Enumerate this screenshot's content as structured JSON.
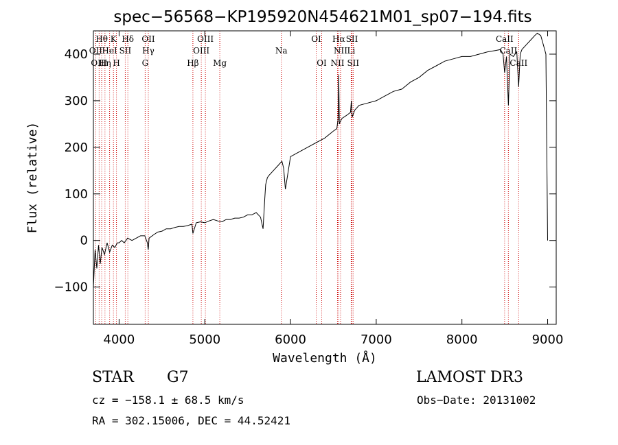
{
  "chart_data": {
    "type": "line",
    "title": "spec−56568−KP195920N454621M01_sp07−194.fits",
    "xlabel": "Wavelength (Å)",
    "ylabel": "Flux (relative)",
    "xlim": [
      3700,
      9100
    ],
    "ylim": [
      -180,
      450
    ],
    "xticks": [
      4000,
      5000,
      6000,
      7000,
      8000,
      9000
    ],
    "yticks": [
      -100,
      0,
      100,
      200,
      300,
      400
    ],
    "xtick_labels": [
      "4000",
      "5000",
      "6000",
      "7000",
      "8000",
      "9000"
    ],
    "ytick_labels": [
      "−100",
      "0",
      "100",
      "200",
      "300",
      "400"
    ],
    "series": [
      {
        "name": "flux",
        "x": [
          3700,
          3720,
          3740,
          3760,
          3780,
          3800,
          3830,
          3860,
          3890,
          3920,
          3950,
          3980,
          4000,
          4030,
          4060,
          4100,
          4150,
          4200,
          4250,
          4300,
          4330,
          4340,
          4350,
          4400,
          4450,
          4500,
          4550,
          4600,
          4650,
          4700,
          4750,
          4800,
          4850,
          4861,
          4900,
          4950,
          5000,
          5050,
          5100,
          5150,
          5200,
          5250,
          5300,
          5350,
          5400,
          5450,
          5500,
          5550,
          5600,
          5650,
          5680,
          5700,
          5710,
          5730,
          5750,
          5800,
          5850,
          5900,
          5920,
          5940,
          6000,
          6100,
          6200,
          6300,
          6400,
          6500,
          6540,
          6555,
          6563,
          6570,
          6580,
          6600,
          6650,
          6700,
          6710,
          6720,
          6750,
          6800,
          6900,
          7000,
          7100,
          7200,
          7300,
          7400,
          7500,
          7600,
          7700,
          7800,
          7900,
          8000,
          8100,
          8200,
          8300,
          8400,
          8450,
          8480,
          8498,
          8520,
          8542,
          8560,
          8600,
          8640,
          8662,
          8680,
          8700,
          8750,
          8800,
          8850,
          8880,
          8920,
          8950,
          8980,
          9000
        ],
        "y": [
          -100,
          -20,
          -60,
          -10,
          -50,
          -15,
          -30,
          -5,
          -25,
          -10,
          -15,
          -5,
          -5,
          0,
          -5,
          5,
          0,
          5,
          10,
          10,
          -5,
          -20,
          5,
          12,
          18,
          20,
          25,
          25,
          28,
          30,
          30,
          32,
          35,
          15,
          38,
          40,
          38,
          42,
          45,
          42,
          40,
          45,
          45,
          48,
          48,
          50,
          55,
          55,
          60,
          50,
          25,
          90,
          120,
          135,
          140,
          150,
          160,
          170,
          155,
          110,
          180,
          190,
          200,
          210,
          220,
          235,
          240,
          260,
          355,
          250,
          255,
          262,
          268,
          275,
          300,
          265,
          280,
          290,
          295,
          300,
          310,
          320,
          325,
          340,
          350,
          365,
          375,
          385,
          390,
          395,
          395,
          400,
          405,
          408,
          410,
          400,
          360,
          395,
          290,
          400,
          395,
          405,
          330,
          400,
          410,
          420,
          430,
          440,
          445,
          440,
          420,
          400,
          0
        ]
      }
    ],
    "spectral_lines": [
      {
        "label": "Hθ",
        "x": 3797,
        "row": 0
      },
      {
        "label": "K",
        "x": 3934,
        "row": 0
      },
      {
        "label": "Hδ",
        "x": 4102,
        "row": 0
      },
      {
        "label": "OII",
        "x": 4341,
        "row": 0
      },
      {
        "label": "OIII",
        "x": 5007,
        "row": 0
      },
      {
        "label": "OI",
        "x": 6300,
        "row": 0
      },
      {
        "label": "Hα",
        "x": 6563,
        "row": 0
      },
      {
        "label": "SII",
        "x": 6717,
        "row": 0
      },
      {
        "label": "CaII",
        "x": 8498,
        "row": 0
      },
      {
        "label": "OII",
        "x": 3727,
        "row": 1
      },
      {
        "label": "HeI",
        "x": 3889,
        "row": 1
      },
      {
        "label": "SII",
        "x": 4072,
        "row": 1
      },
      {
        "label": "Hγ",
        "x": 4341,
        "row": 1
      },
      {
        "label": "OIII",
        "x": 4959,
        "row": 1
      },
      {
        "label": "Na",
        "x": 5893,
        "row": 1
      },
      {
        "label": "NII",
        "x": 6584,
        "row": 1
      },
      {
        "label": "Li",
        "x": 6708,
        "row": 1
      },
      {
        "label": "CaII",
        "x": 8542,
        "row": 1
      },
      {
        "label": "OIII",
        "x": 3767,
        "row": 2
      },
      {
        "label": "Hη",
        "x": 3835,
        "row": 2
      },
      {
        "label": "H",
        "x": 3969,
        "row": 2
      },
      {
        "label": "G",
        "x": 4304,
        "row": 2
      },
      {
        "label": "Hβ",
        "x": 4861,
        "row": 2
      },
      {
        "label": "Mg",
        "x": 5175,
        "row": 2
      },
      {
        "label": "OI",
        "x": 6364,
        "row": 2
      },
      {
        "label": "NII",
        "x": 6548,
        "row": 2
      },
      {
        "label": "SII",
        "x": 6731,
        "row": 2
      },
      {
        "label": "CaII",
        "x": 8662,
        "row": 2
      }
    ],
    "line_color": "#000000",
    "marker_color": "#cc0000"
  },
  "info": {
    "class": "STAR",
    "subclass": "G7",
    "survey": "LAMOST DR3",
    "cz": "cz = −158.1 ± 68.5 km/s",
    "obs_date": "Obs−Date: 20131002",
    "coords": "RA = 302.15006, DEC =  44.52421"
  }
}
